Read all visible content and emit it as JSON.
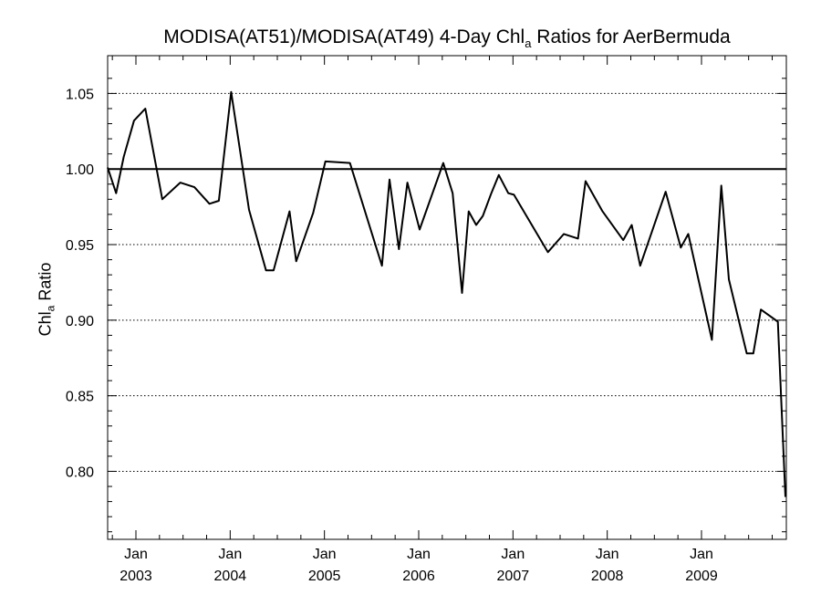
{
  "chart_data": {
    "type": "line",
    "title": {
      "before": "MODISA(AT51)/MODISA(AT49) 4-Day Chl",
      "subscript": "a",
      "after": " Ratios for AerBermuda"
    },
    "ylabel": {
      "before": "Chl",
      "subscript": "a",
      "after": " Ratio"
    },
    "xlabel": "",
    "xlim": [
      2002.7,
      2009.9
    ],
    "ylim": [
      0.755,
      1.075
    ],
    "yticks": [
      0.8,
      0.85,
      0.9,
      0.95,
      1.0,
      1.05
    ],
    "ytick_labels": [
      "0.80",
      "0.85",
      "0.90",
      "0.95",
      "1.00",
      "1.05"
    ],
    "xticks": [
      {
        "pos": 2003,
        "month": "Jan",
        "year": "2003"
      },
      {
        "pos": 2004,
        "month": "Jan",
        "year": "2004"
      },
      {
        "pos": 2005,
        "month": "Jan",
        "year": "2005"
      },
      {
        "pos": 2006,
        "month": "Jan",
        "year": "2006"
      },
      {
        "pos": 2007,
        "month": "Jan",
        "year": "2007"
      },
      {
        "pos": 2008,
        "month": "Jan",
        "year": "2008"
      },
      {
        "pos": 2009,
        "month": "Jan",
        "year": "2009"
      }
    ],
    "minor_ticks_per_year": 4,
    "grid": "horizontal dotted at y ticks",
    "reference_line": 1.0,
    "series": [
      {
        "color": "#000000",
        "x": [
          2002.7,
          2002.79,
          2002.87,
          2002.98,
          2003.1,
          2003.28,
          2003.47,
          2003.62,
          2003.78,
          2003.88,
          2004.01,
          2004.2,
          2004.38,
          2004.46,
          2004.63,
          2004.7,
          2004.88,
          2005.01,
          2005.27,
          2005.61,
          2005.69,
          2005.79,
          2005.88,
          2006.01,
          2006.26,
          2006.36,
          2006.46,
          2006.53,
          2006.61,
          2006.68,
          2006.77,
          2006.85,
          2006.95,
          2007.01,
          2007.37,
          2007.54,
          2007.69,
          2007.77,
          2007.95,
          2008.17,
          2008.26,
          2008.35,
          2008.62,
          2008.78,
          2008.86,
          2009.11,
          2009.21,
          2009.29,
          2009.48,
          2009.55,
          2009.63,
          2009.81,
          2009.89
        ],
        "y": [
          1.001,
          0.984,
          1.008,
          1.032,
          1.04,
          0.98,
          0.991,
          0.988,
          0.977,
          0.979,
          1.051,
          0.973,
          0.933,
          0.933,
          0.972,
          0.939,
          0.971,
          1.005,
          1.004,
          0.936,
          0.993,
          0.947,
          0.991,
          0.96,
          1.004,
          0.984,
          0.918,
          0.972,
          0.963,
          0.969,
          0.984,
          0.996,
          0.984,
          0.983,
          0.945,
          0.957,
          0.954,
          0.992,
          0.972,
          0.953,
          0.963,
          0.936,
          0.985,
          0.948,
          0.957,
          0.887,
          0.989,
          0.927,
          0.878,
          0.878,
          0.907,
          0.899,
          0.783
        ]
      }
    ]
  }
}
